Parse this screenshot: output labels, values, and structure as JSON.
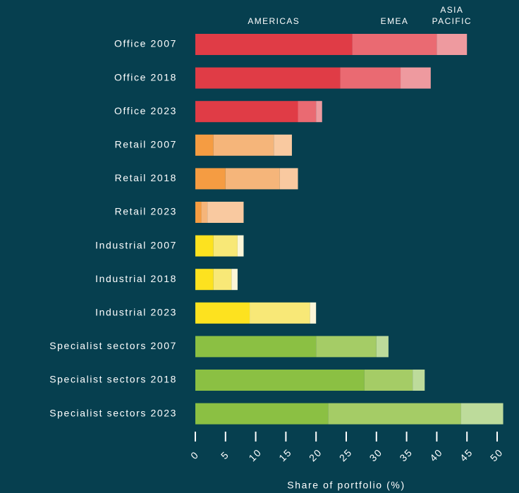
{
  "chart_data": {
    "type": "stacked_barh",
    "x_label": "Share of portfolio (%)",
    "categories": [
      "Office 2007",
      "Office 2018",
      "Office 2023",
      "Retail 2007",
      "Retail 2018",
      "Retail 2023",
      "Industrial 2007",
      "Industrial 2018",
      "Industrial 2023",
      "Specialist sectors 2007",
      "Specialist sectors 2018",
      "Specialist sectors 2023"
    ],
    "series": [
      {
        "name": "AMERICAS",
        "values": [
          26,
          24,
          17,
          3,
          5,
          1,
          3,
          3,
          9,
          20,
          28,
          22
        ],
        "colors": [
          "#e03c46",
          "#e03c46",
          "#e03c46",
          "#f59c42",
          "#f59c42",
          "#f59c42",
          "#fde21f",
          "#fde21f",
          "#fde21f",
          "#8bc043",
          "#8bc043",
          "#8bc043"
        ]
      },
      {
        "name": "EMEA",
        "values": [
          14,
          10,
          3,
          10,
          9,
          1,
          4,
          3,
          10,
          10,
          8,
          22
        ],
        "colors": [
          "#ea6a72",
          "#ea6a72",
          "#ea6a72",
          "#f5b57a",
          "#f5b57a",
          "#f5b57a",
          "#f8e877",
          "#f8e877",
          "#f8e877",
          "#a5cc66",
          "#a5cc66",
          "#a5cc66"
        ]
      },
      {
        "name": "ASIA PACIFIC",
        "values": [
          5,
          5,
          1,
          3,
          3,
          6,
          1,
          1,
          1,
          2,
          2,
          7
        ],
        "colors": [
          "#ee9a9f",
          "#ee9a9f",
          "#ee9a9f",
          "#f9c9a0",
          "#f9c9a0",
          "#f9c9a0",
          "#fcf6d8",
          "#fcf6d8",
          "#fcf6d8",
          "#bddb9b",
          "#bddb9b",
          "#bddb9b"
        ]
      }
    ],
    "xlim": [
      0,
      51
    ],
    "xticks": [
      0,
      5,
      10,
      15,
      20,
      25,
      30,
      35,
      40,
      45,
      50
    ]
  }
}
